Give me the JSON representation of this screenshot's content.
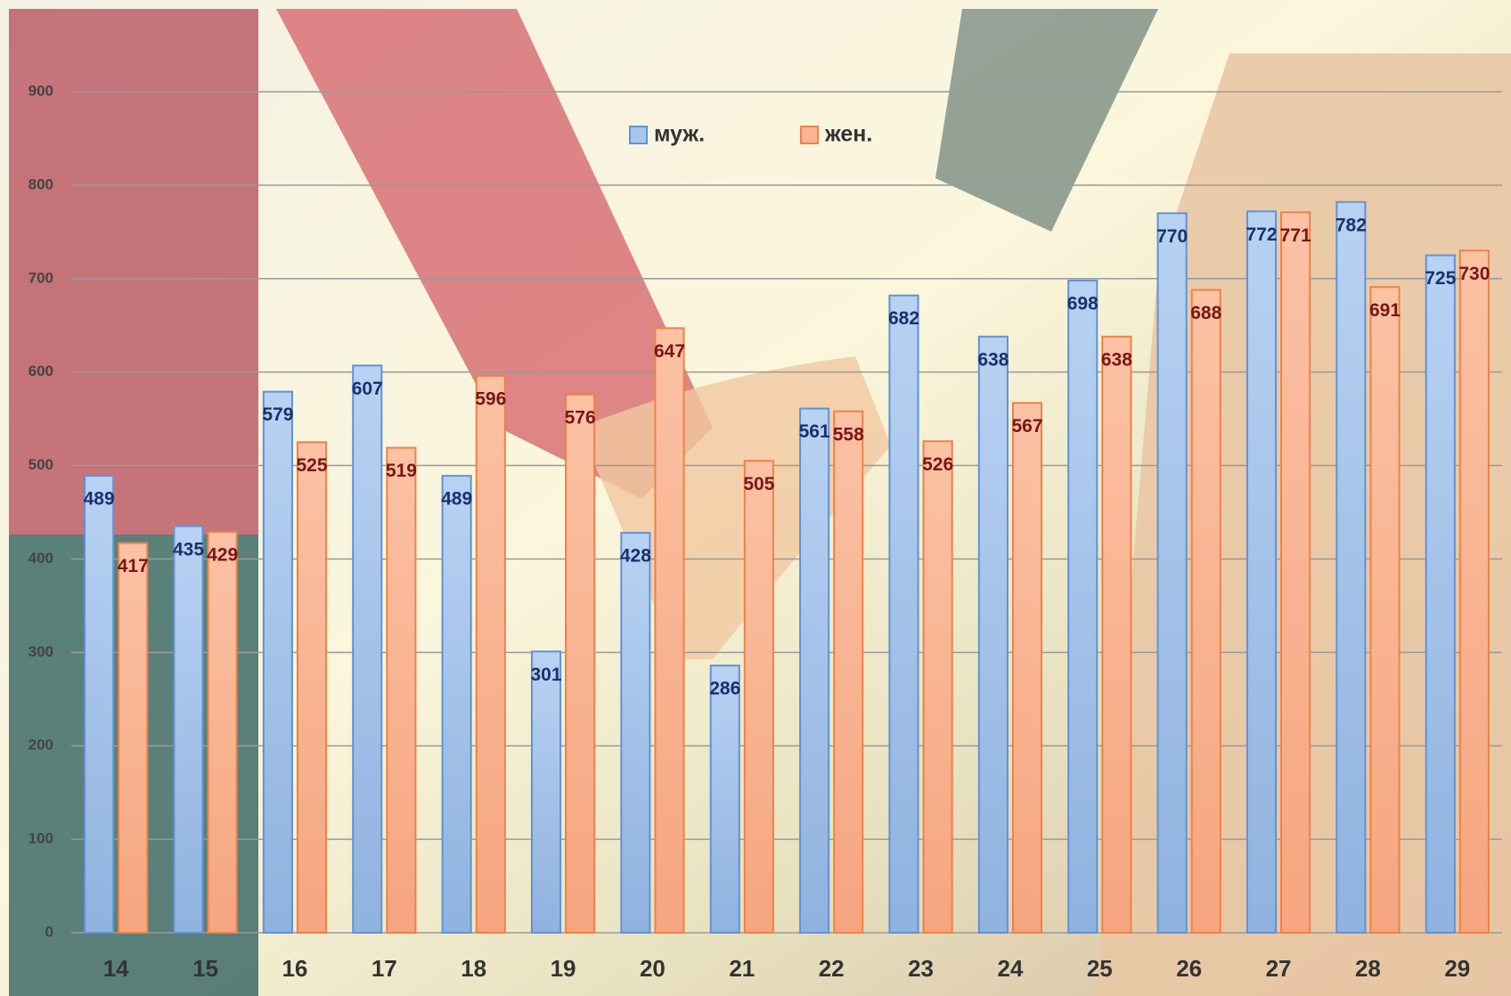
{
  "chart_data": {
    "type": "bar",
    "categories": [
      "14",
      "15",
      "16",
      "17",
      "18",
      "19",
      "20",
      "21",
      "22",
      "23",
      "24",
      "25",
      "26",
      "27",
      "28",
      "29"
    ],
    "series": [
      {
        "name": "муж.",
        "color": "#a9c6ea",
        "values": [
          489,
          435,
          579,
          607,
          489,
          301,
          428,
          286,
          561,
          682,
          638,
          698,
          770,
          772,
          782,
          725
        ]
      },
      {
        "name": "жен.",
        "color": "#f9b595",
        "values": [
          417,
          429,
          525,
          519,
          596,
          576,
          647,
          505,
          558,
          526,
          567,
          638,
          688,
          771,
          691,
          730
        ]
      }
    ],
    "ylim": [
      0,
      900
    ],
    "yticks": [
      0,
      100,
      200,
      300,
      400,
      500,
      600,
      700,
      800,
      900
    ],
    "grid": true
  }
}
